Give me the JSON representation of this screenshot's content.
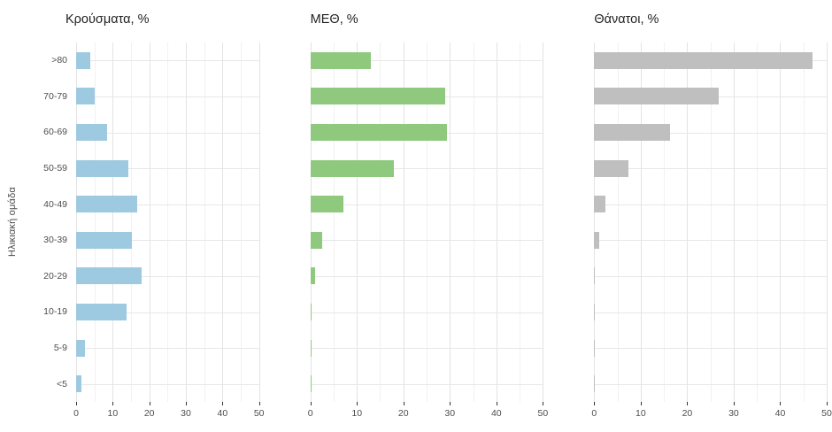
{
  "figure": {
    "y_axis_title": "Ηλικιακή ομάδα"
  },
  "chart_data": [
    {
      "type": "bar",
      "orientation": "horizontal",
      "title": "Κρούσματα, %",
      "bar_color": "#9ecae1",
      "categories": [
        ">80",
        "70-79",
        "60-69",
        "50-59",
        "40-49",
        "30-39",
        "20-29",
        "10-19",
        "5-9",
        "<5"
      ],
      "values": [
        3.9,
        5.2,
        8.5,
        14.2,
        16.8,
        15.2,
        17.8,
        13.8,
        2.5,
        1.4
      ],
      "xlim": [
        0,
        50
      ],
      "xticks": [
        0,
        10,
        20,
        30,
        40,
        50
      ],
      "grid": true,
      "legend": false,
      "show_category_labels": true
    },
    {
      "type": "bar",
      "orientation": "horizontal",
      "title": "ΜΕΘ, %",
      "bar_color": "#8fc97e",
      "categories": [
        ">80",
        "70-79",
        "60-69",
        "50-59",
        "40-49",
        "30-39",
        "20-29",
        "10-19",
        "5-9",
        "<5"
      ],
      "values": [
        13.0,
        29.0,
        29.3,
        18.0,
        7.2,
        2.6,
        1.0,
        0.2,
        0.2,
        0.3
      ],
      "xlim": [
        0,
        50
      ],
      "xticks": [
        0,
        10,
        20,
        30,
        40,
        50
      ],
      "grid": true,
      "legend": false,
      "show_category_labels": false
    },
    {
      "type": "bar",
      "orientation": "horizontal",
      "title": "Θάνατοι, %",
      "bar_color": "#bfbfbf",
      "categories": [
        ">80",
        "70-79",
        "60-69",
        "50-59",
        "40-49",
        "30-39",
        "20-29",
        "10-19",
        "5-9",
        "<5"
      ],
      "values": [
        47.0,
        26.8,
        16.3,
        7.3,
        2.4,
        1.0,
        0.15,
        0.15,
        0.05,
        0.15
      ],
      "xlim": [
        0,
        50
      ],
      "xticks": [
        0,
        10,
        20,
        30,
        40,
        50
      ],
      "grid": true,
      "legend": false,
      "show_category_labels": false
    }
  ]
}
